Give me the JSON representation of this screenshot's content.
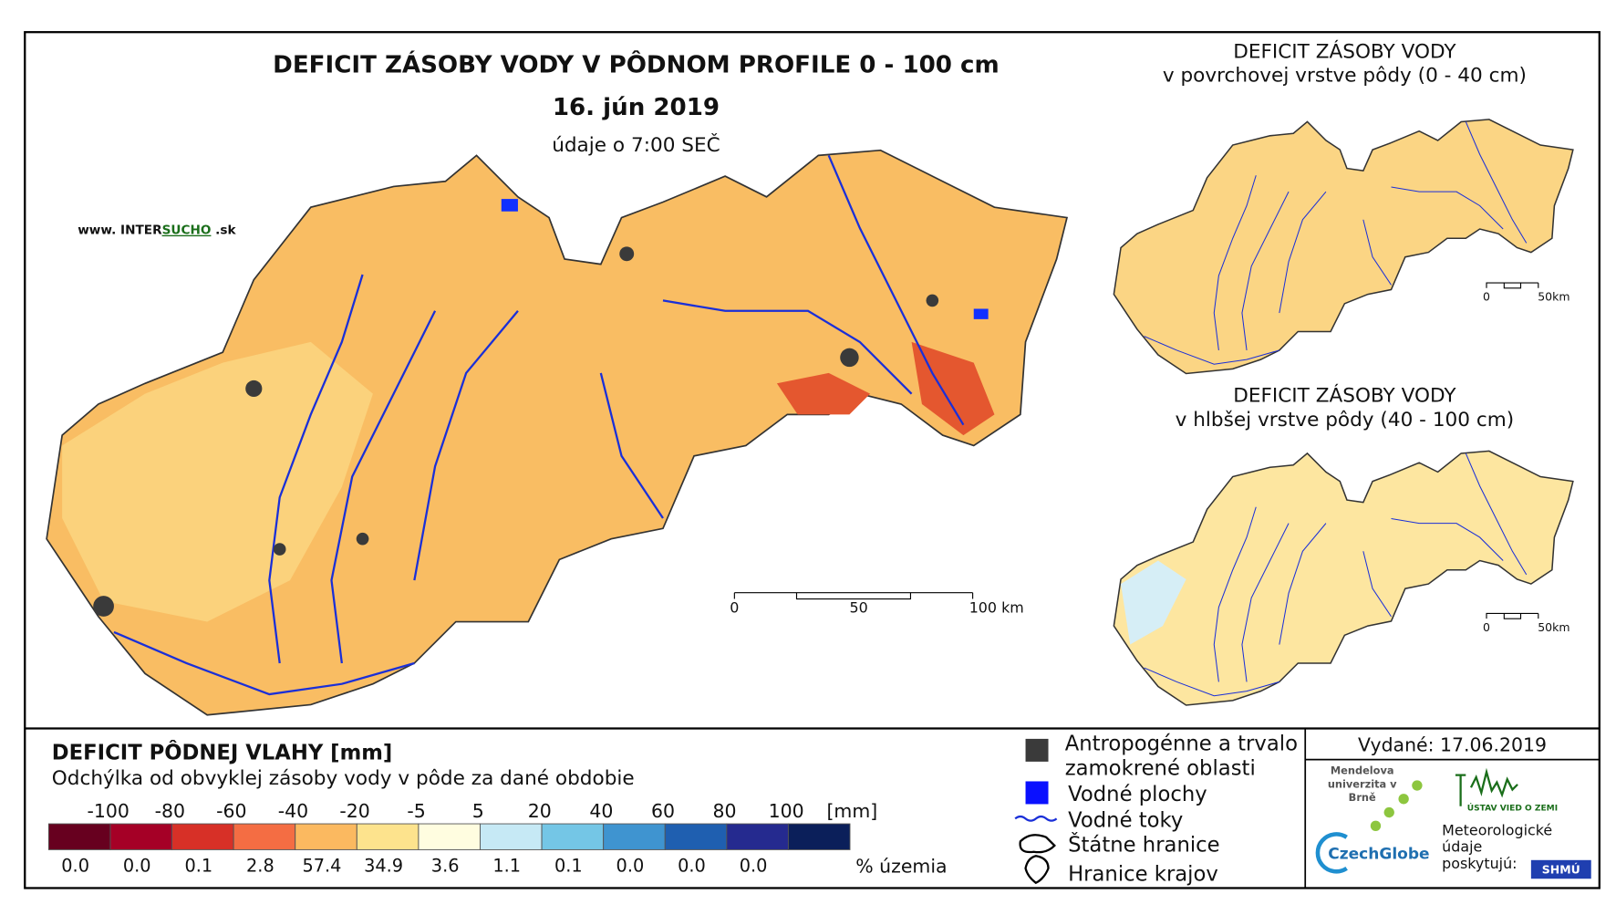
{
  "main_map": {
    "title": "DEFICIT ZÁSOBY VODY V PÔDNOM PROFILE 0 - 100 cm",
    "date": "16. jún 2019",
    "time_note": "údaje o 7:00 SEČ",
    "website": {
      "prefix": "www. INTER",
      "highlight": "SUCHO",
      "suffix": " .sk"
    },
    "scale": [
      "0",
      "50",
      "100 km"
    ]
  },
  "inset_maps": [
    {
      "title": "DEFICIT ZÁSOBY VODY",
      "subtitle": "v povrchovej vrstve pôdy (0 - 40 cm)",
      "scale": [
        "0",
        "50km"
      ]
    },
    {
      "title": "DEFICIT ZÁSOBY VODY",
      "subtitle": "v hlbšej vrstve pôdy (40 - 100 cm)",
      "scale": [
        "0",
        "50km"
      ]
    }
  ],
  "legend": {
    "title": "DEFICIT PÔDNEJ VLAHY [mm]",
    "subtitle": "Odchýlka od obvyklej zásoby vody v pôde za dané obdobie",
    "bounds": [
      "-100",
      "-80",
      "-60",
      "-40",
      "-20",
      "-5",
      "5",
      "20",
      "40",
      "60",
      "80",
      "100"
    ],
    "unit": "[mm]",
    "classes": [
      {
        "color": "#67001f",
        "share": "0.0"
      },
      {
        "color": "#a50026",
        "share": "0.0"
      },
      {
        "color": "#d73027",
        "share": "0.1"
      },
      {
        "color": "#f46d43",
        "share": "2.8"
      },
      {
        "color": "#fbb960",
        "share": "57.4"
      },
      {
        "color": "#fde38d",
        "share": "34.9"
      },
      {
        "color": "#fffde0",
        "share": "3.6"
      },
      {
        "color": "#c6e9f5",
        "share": "1.1"
      },
      {
        "color": "#74c6e6",
        "share": "0.1"
      },
      {
        "color": "#3f94d0",
        "share": "0.0"
      },
      {
        "color": "#1f5fb0",
        "share": "0.0"
      },
      {
        "color": "#252a8f",
        "share": "0.0"
      },
      {
        "color": "#0b1f5a",
        "share": null
      }
    ],
    "share_label": "% územia"
  },
  "symbols": [
    "Antropogénne a trvalo zamokrené oblasti",
    "Vodné plochy",
    "Vodné toky",
    "Štátne hranice",
    "Hranice krajov"
  ],
  "issued": "Vydané: 17.06.2019",
  "logos": {
    "mendel": "Mendelova univerzita v Brně",
    "czechglobe": "CzechGlobe",
    "earth": "ÚSTAV VIED O ZEMI",
    "meteo": "Meteorologické údaje poskytujú:",
    "shmu": "SHMÚ"
  }
}
